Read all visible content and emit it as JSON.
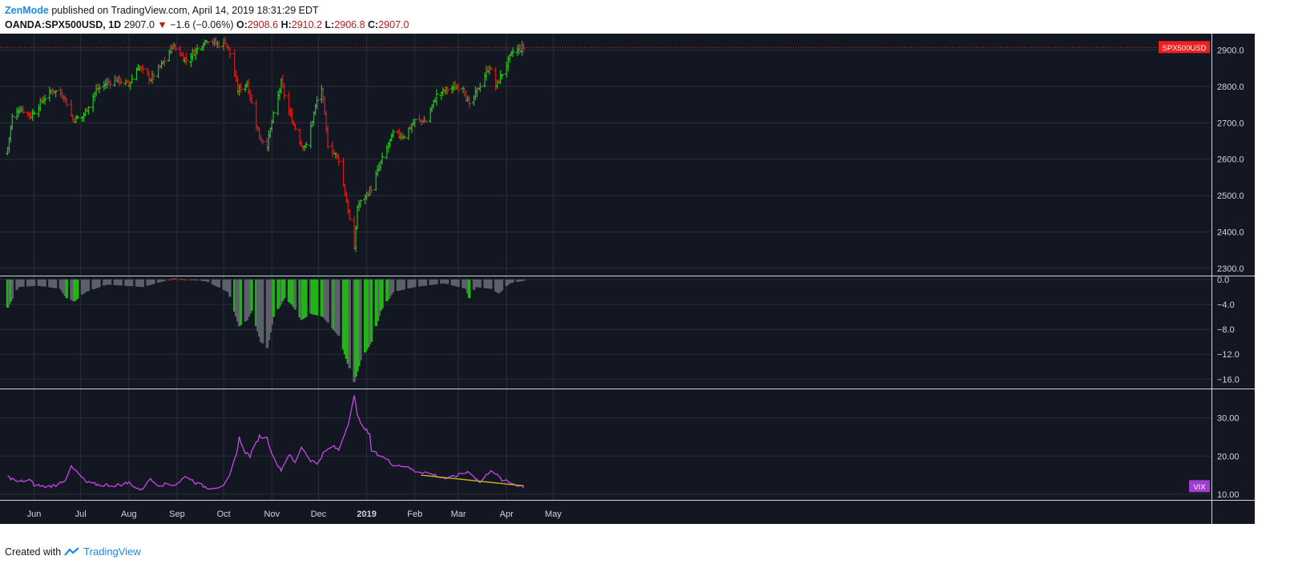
{
  "header": {
    "author": "ZenMode",
    "published_text": "published on TradingView.com, April 14, 2019 18:31:29 EDT",
    "symbol": "OANDA:SPX500USD",
    "interval": "1D",
    "last": "2907.0",
    "change": "−1.6 (−0.06%)",
    "open_label": "O:",
    "open": "2908.6",
    "high_label": "H:",
    "high": "2910.2",
    "low_label": "L:",
    "low": "2906.8",
    "close_label": "C:",
    "close": "2907.0"
  },
  "footer": {
    "created_with": "Created with",
    "brand": "TradingView"
  },
  "colors": {
    "background": "#131722",
    "grid": "#2a2e39",
    "up": "#26c01c",
    "down": "#d31e1e",
    "histogram": "#5d606b",
    "histogram_strong": "#22b516",
    "vix_line": "#c846e6",
    "trendline": "#c9b81c",
    "price_tag": "#f02020",
    "vix_tag": "#a23bcf"
  },
  "chart_data": [
    {
      "type": "candlestick",
      "title": "",
      "price_tag": "SPX500USD",
      "ylim": [
        2280,
        2945
      ],
      "y_ticks": [
        "2900.0",
        "2800.0",
        "2700.0",
        "2600.0",
        "2500.0",
        "2400.0",
        "2300.0"
      ],
      "x_ticks": [
        "Jun",
        "Jul",
        "Aug",
        "Sep",
        "Oct",
        "Nov",
        "Dec",
        "2019",
        "Feb",
        "Mar",
        "Apr",
        "May"
      ],
      "current_price": 2907.0,
      "anchors": [
        [
          "2018-05-15",
          2630
        ],
        [
          "2018-05-18",
          2715
        ],
        [
          "2018-05-23",
          2740
        ],
        [
          "2018-05-30",
          2720
        ],
        [
          "2018-06-07",
          2765
        ],
        [
          "2018-06-13",
          2790
        ],
        [
          "2018-06-20",
          2775
        ],
        [
          "2018-06-26",
          2710
        ],
        [
          "2018-07-02",
          2715
        ],
        [
          "2018-07-11",
          2790
        ],
        [
          "2018-07-18",
          2810
        ],
        [
          "2018-07-24",
          2820
        ],
        [
          "2018-08-01",
          2805
        ],
        [
          "2018-08-07",
          2855
        ],
        [
          "2018-08-15",
          2820
        ],
        [
          "2018-08-24",
          2870
        ],
        [
          "2018-08-29",
          2912
        ],
        [
          "2018-09-07",
          2872
        ],
        [
          "2018-09-11",
          2890
        ],
        [
          "2018-09-20",
          2930
        ],
        [
          "2018-09-28",
          2915
        ],
        [
          "2018-10-02",
          2925
        ],
        [
          "2018-10-05",
          2890
        ],
        [
          "2018-10-10",
          2790
        ],
        [
          "2018-10-16",
          2810
        ],
        [
          "2018-10-24",
          2660
        ],
        [
          "2018-10-29",
          2640
        ],
        [
          "2018-11-02",
          2720
        ],
        [
          "2018-11-07",
          2810
        ],
        [
          "2018-11-12",
          2730
        ],
        [
          "2018-11-20",
          2640
        ],
        [
          "2018-11-23",
          2635
        ],
        [
          "2018-11-30",
          2760
        ],
        [
          "2018-12-03",
          2795
        ],
        [
          "2018-12-07",
          2640
        ],
        [
          "2018-12-14",
          2600
        ],
        [
          "2018-12-20",
          2460
        ],
        [
          "2018-12-24",
          2350
        ],
        [
          "2018-12-26",
          2470
        ],
        [
          "2019-01-04",
          2520
        ],
        [
          "2019-01-10",
          2590
        ],
        [
          "2019-01-18",
          2670
        ],
        [
          "2019-01-25",
          2665
        ],
        [
          "2019-02-01",
          2705
        ],
        [
          "2019-02-08",
          2705
        ],
        [
          "2019-02-15",
          2775
        ],
        [
          "2019-02-22",
          2793
        ],
        [
          "2019-03-04",
          2800
        ],
        [
          "2019-03-08",
          2745
        ],
        [
          "2019-03-18",
          2830
        ],
        [
          "2019-03-21",
          2855
        ],
        [
          "2019-03-25",
          2800
        ],
        [
          "2019-03-29",
          2835
        ],
        [
          "2019-04-05",
          2895
        ],
        [
          "2019-04-12",
          2907
        ]
      ]
    },
    {
      "type": "bar",
      "title": "",
      "ylim": [
        -17.5,
        0.5
      ],
      "y_ticks": [
        "0.0",
        "−4.0",
        "−8.0",
        "−12.0",
        "−16.0"
      ],
      "anchors": [
        [
          "2018-05-15",
          -4.5
        ],
        [
          "2018-05-22",
          -1.2
        ],
        [
          "2018-06-04",
          -1.0
        ],
        [
          "2018-06-18",
          -1.5
        ],
        [
          "2018-06-22",
          -3.0
        ],
        [
          "2018-06-27",
          -3.5
        ],
        [
          "2018-07-04",
          -2.0
        ],
        [
          "2018-07-18",
          -0.8
        ],
        [
          "2018-08-10",
          -1.2
        ],
        [
          "2018-08-30",
          0.2
        ],
        [
          "2018-09-20",
          -0.3
        ],
        [
          "2018-10-04",
          -2.0
        ],
        [
          "2018-10-11",
          -7.5
        ],
        [
          "2018-10-16",
          -6.5
        ],
        [
          "2018-10-19",
          -5.0
        ],
        [
          "2018-10-25",
          -10.0
        ],
        [
          "2018-10-29",
          -11.0
        ],
        [
          "2018-11-02",
          -6.0
        ],
        [
          "2018-11-09",
          -3.0
        ],
        [
          "2018-11-14",
          -4.0
        ],
        [
          "2018-11-20",
          -6.5
        ],
        [
          "2018-11-26",
          -5.5
        ],
        [
          "2018-12-04",
          -6.0
        ],
        [
          "2018-12-14",
          -9.0
        ],
        [
          "2018-12-20",
          -13.5
        ],
        [
          "2018-12-24",
          -16.5
        ],
        [
          "2018-12-28",
          -13.0
        ],
        [
          "2019-01-04",
          -10.0
        ],
        [
          "2019-01-10",
          -5.0
        ],
        [
          "2019-01-18",
          -2.0
        ],
        [
          "2019-02-01",
          -1.2
        ],
        [
          "2019-02-20",
          -0.6
        ],
        [
          "2019-03-06",
          -1.5
        ],
        [
          "2019-03-08",
          -3.0
        ],
        [
          "2019-03-12",
          -1.2
        ],
        [
          "2019-03-22",
          -1.5
        ],
        [
          "2019-03-27",
          -2.2
        ],
        [
          "2019-04-03",
          -0.6
        ],
        [
          "2019-04-12",
          -0.2
        ]
      ]
    },
    {
      "type": "line",
      "title": "",
      "series_name": "VIX",
      "ylim": [
        8.5,
        37.5
      ],
      "y_ticks": [
        "30.00",
        "20.00",
        "10.00"
      ],
      "trendline": [
        [
          "2019-02-05",
          15.0
        ],
        [
          "2019-04-12",
          12.2
        ]
      ],
      "anchors": [
        [
          "2018-05-15",
          14.6
        ],
        [
          "2018-05-22",
          13.2
        ],
        [
          "2018-05-29",
          13.8
        ],
        [
          "2018-06-01",
          12.5
        ],
        [
          "2018-06-07",
          12.0
        ],
        [
          "2018-06-14",
          12.2
        ],
        [
          "2018-06-21",
          13.8
        ],
        [
          "2018-06-25",
          17.0
        ],
        [
          "2018-06-28",
          16.0
        ],
        [
          "2018-07-05",
          13.0
        ],
        [
          "2018-07-12",
          12.5
        ],
        [
          "2018-07-24",
          12.3
        ],
        [
          "2018-08-01",
          13.0
        ],
        [
          "2018-08-09",
          11.0
        ],
        [
          "2018-08-14",
          14.0
        ],
        [
          "2018-08-20",
          12.5
        ],
        [
          "2018-08-31",
          12.5
        ],
        [
          "2018-09-07",
          14.8
        ],
        [
          "2018-09-14",
          12.7
        ],
        [
          "2018-09-21",
          11.7
        ],
        [
          "2018-10-01",
          12.0
        ],
        [
          "2018-10-05",
          14.8
        ],
        [
          "2018-10-10",
          22.0
        ],
        [
          "2018-10-11",
          24.8
        ],
        [
          "2018-10-15",
          21.0
        ],
        [
          "2018-10-18",
          20.0
        ],
        [
          "2018-10-24",
          25.2
        ],
        [
          "2018-10-29",
          24.7
        ],
        [
          "2018-11-02",
          19.5
        ],
        [
          "2018-11-07",
          16.4
        ],
        [
          "2018-11-12",
          20.5
        ],
        [
          "2018-11-16",
          18.1
        ],
        [
          "2018-11-20",
          22.5
        ],
        [
          "2018-11-26",
          18.9
        ],
        [
          "2018-11-30",
          18.1
        ],
        [
          "2018-12-04",
          20.7
        ],
        [
          "2018-12-10",
          22.6
        ],
        [
          "2018-12-14",
          21.6
        ],
        [
          "2018-12-20",
          28.4
        ],
        [
          "2018-12-24",
          36.0
        ],
        [
          "2018-12-26",
          30.4
        ],
        [
          "2019-01-03",
          25.4
        ],
        [
          "2019-01-04",
          21.4
        ],
        [
          "2019-01-14",
          19.1
        ],
        [
          "2019-01-18",
          17.8
        ],
        [
          "2019-01-25",
          17.4
        ],
        [
          "2019-02-01",
          16.1
        ],
        [
          "2019-02-08",
          15.7
        ],
        [
          "2019-02-22",
          14.0
        ],
        [
          "2019-03-08",
          16.0
        ],
        [
          "2019-03-15",
          13.0
        ],
        [
          "2019-03-22",
          16.5
        ],
        [
          "2019-03-29",
          13.7
        ],
        [
          "2019-04-05",
          12.8
        ],
        [
          "2019-04-12",
          12.0
        ]
      ]
    }
  ]
}
